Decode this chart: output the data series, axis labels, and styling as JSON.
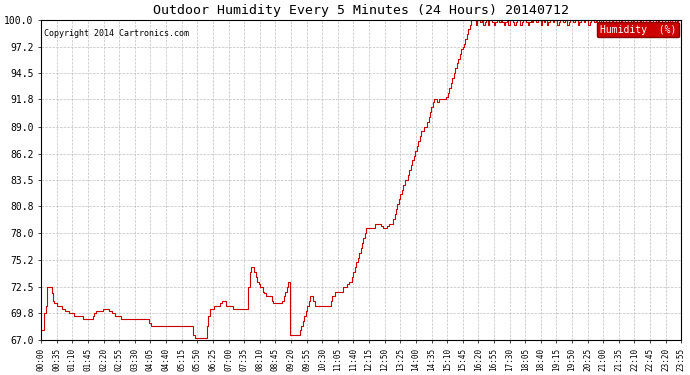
{
  "title": "Outdoor Humidity Every 5 Minutes (24 Hours) 20140712",
  "copyright": "Copyright 2014 Cartronics.com",
  "legend_label": "Humidity  (%)",
  "line_color": "#cc0000",
  "background_color": "#ffffff",
  "grid_color": "#b0b0b0",
  "ylim": [
    67.0,
    100.0
  ],
  "yticks": [
    67.0,
    69.8,
    72.5,
    75.2,
    78.0,
    80.8,
    83.5,
    86.2,
    89.0,
    91.8,
    94.5,
    97.2,
    100.0
  ],
  "xtick_labels": [
    "00:00",
    "00:35",
    "01:10",
    "01:45",
    "02:20",
    "02:55",
    "03:30",
    "04:05",
    "04:40",
    "05:15",
    "05:50",
    "06:25",
    "07:00",
    "07:35",
    "08:10",
    "08:45",
    "09:20",
    "09:55",
    "10:30",
    "11:05",
    "11:40",
    "12:15",
    "12:50",
    "13:25",
    "14:00",
    "14:35",
    "15:10",
    "15:45",
    "16:20",
    "16:55",
    "17:30",
    "18:05",
    "18:40",
    "19:15",
    "19:50",
    "20:25",
    "21:00",
    "21:35",
    "22:10",
    "22:45",
    "23:20",
    "23:55"
  ],
  "humidity_values": [
    68.0,
    68.0,
    69.8,
    70.5,
    72.5,
    72.5,
    72.5,
    71.8,
    71.0,
    70.8,
    70.8,
    70.5,
    70.5,
    70.5,
    70.2,
    70.2,
    70.0,
    70.0,
    70.0,
    69.8,
    69.8,
    69.8,
    69.5,
    69.5,
    69.5,
    69.5,
    69.5,
    69.5,
    69.2,
    69.2,
    69.2,
    69.2,
    69.2,
    69.2,
    69.2,
    69.5,
    69.8,
    70.0,
    70.0,
    70.0,
    70.0,
    70.0,
    70.2,
    70.2,
    70.2,
    70.2,
    70.0,
    70.0,
    69.8,
    69.8,
    69.5,
    69.5,
    69.5,
    69.5,
    69.2,
    69.2,
    69.2,
    69.2,
    69.2,
    69.2,
    69.2,
    69.2,
    69.2,
    69.2,
    69.2,
    69.2,
    69.2,
    69.2,
    69.2,
    69.2,
    69.2,
    69.2,
    69.2,
    68.8,
    68.5,
    68.5,
    68.5,
    68.5,
    68.5,
    68.5,
    68.5,
    68.5,
    68.5,
    68.5,
    68.5,
    68.5,
    68.5,
    68.5,
    68.5,
    68.5,
    68.5,
    68.5,
    68.5,
    68.5,
    68.5,
    68.5,
    68.5,
    68.5,
    68.5,
    68.5,
    68.5,
    68.5,
    68.5,
    67.5,
    67.2,
    67.2,
    67.2,
    67.2,
    67.2,
    67.2,
    67.2,
    67.2,
    68.5,
    69.5,
    70.2,
    70.2,
    70.2,
    70.5,
    70.5,
    70.5,
    70.5,
    70.8,
    71.0,
    71.0,
    71.0,
    70.5,
    70.5,
    70.5,
    70.5,
    70.5,
    70.2,
    70.2,
    70.2,
    70.2,
    70.2,
    70.2,
    70.2,
    70.2,
    70.2,
    70.2,
    72.5,
    74.0,
    74.5,
    74.5,
    74.0,
    73.5,
    73.0,
    72.8,
    72.5,
    72.5,
    72.0,
    71.8,
    71.5,
    71.5,
    71.5,
    71.5,
    71.0,
    70.8,
    70.8,
    70.8,
    70.8,
    70.8,
    70.8,
    71.0,
    71.5,
    72.0,
    72.5,
    73.0,
    67.5,
    67.5,
    67.5,
    67.5,
    67.5,
    67.5,
    67.5,
    68.0,
    68.5,
    69.0,
    69.5,
    70.0,
    70.5,
    71.0,
    71.5,
    71.5,
    71.0,
    70.5,
    70.5,
    70.5,
    70.5,
    70.5,
    70.5,
    70.5,
    70.5,
    70.5,
    70.5,
    70.5,
    71.0,
    71.5,
    71.5,
    72.0,
    72.0,
    72.0,
    72.0,
    72.0,
    72.5,
    72.5,
    72.5,
    72.8,
    73.0,
    73.0,
    73.5,
    74.0,
    74.5,
    75.0,
    75.5,
    76.0,
    76.5,
    77.0,
    77.5,
    78.0,
    78.5,
    78.5,
    78.5,
    78.5,
    78.5,
    78.5,
    79.0,
    79.0,
    79.0,
    79.0,
    78.8,
    78.5,
    78.5,
    78.5,
    78.8,
    79.0,
    79.0,
    79.0,
    79.5,
    80.0,
    80.5,
    81.0,
    81.5,
    82.0,
    82.5,
    83.0,
    83.5,
    83.5,
    84.0,
    84.5,
    85.0,
    85.5,
    86.0,
    86.5,
    87.0,
    87.5,
    88.0,
    88.5,
    88.5,
    89.0,
    89.0,
    89.5,
    90.0,
    90.5,
    91.0,
    91.5,
    91.8,
    91.8,
    91.5,
    91.8,
    91.8,
    91.8,
    91.8,
    91.8,
    92.0,
    92.5,
    93.0,
    93.5,
    94.0,
    94.5,
    95.0,
    95.5,
    96.0,
    96.5,
    97.0,
    97.2,
    97.5,
    98.0,
    98.5,
    99.0,
    99.5,
    100.0,
    100.0,
    100.0,
    99.5,
    100.0,
    100.0,
    99.8,
    100.0,
    99.5,
    99.8,
    100.0,
    99.5,
    100.0,
    100.0,
    99.8,
    99.5,
    99.8,
    100.0,
    100.0,
    99.8,
    100.0,
    99.8,
    99.5,
    99.8,
    100.0,
    99.5,
    100.0,
    100.0,
    99.8,
    99.5,
    99.8,
    100.0,
    100.0,
    99.5,
    99.8,
    100.0,
    100.0,
    99.8,
    99.5,
    99.8,
    100.0,
    99.8,
    100.0,
    100.0,
    99.8,
    100.0,
    100.0,
    99.5,
    100.0,
    99.8,
    100.0,
    99.5,
    99.8,
    100.0,
    100.0,
    99.8,
    100.0,
    100.0,
    99.5,
    99.8,
    100.0,
    100.0,
    99.8,
    100.0,
    100.0,
    99.5,
    99.8,
    100.0,
    100.0,
    99.8,
    100.0,
    100.0,
    99.5,
    99.8,
    100.0,
    100.0,
    99.8,
    100.0,
    100.0,
    99.5,
    99.8,
    100.0,
    100.0,
    99.8,
    100.0,
    99.5,
    100.0,
    100.0,
    99.8,
    100.0,
    100.0,
    99.5,
    99.8,
    100.0,
    100.0,
    99.8,
    100.0,
    100.0,
    99.5,
    99.8,
    100.0,
    99.8,
    100.0,
    100.0,
    99.5,
    99.8,
    100.0,
    100.0,
    99.8,
    100.0,
    99.5,
    99.8,
    100.0,
    100.0,
    99.8,
    100.0,
    99.5,
    99.8,
    100.0,
    100.0,
    99.8,
    100.0,
    100.0,
    99.5,
    99.8,
    100.0,
    99.8,
    100.0,
    100.0,
    99.5,
    99.8,
    100.0,
    100.0,
    99.8,
    100.0,
    100.0,
    99.5,
    99.8,
    100.0,
    99.8,
    100.0,
    100.0,
    99.5
  ]
}
